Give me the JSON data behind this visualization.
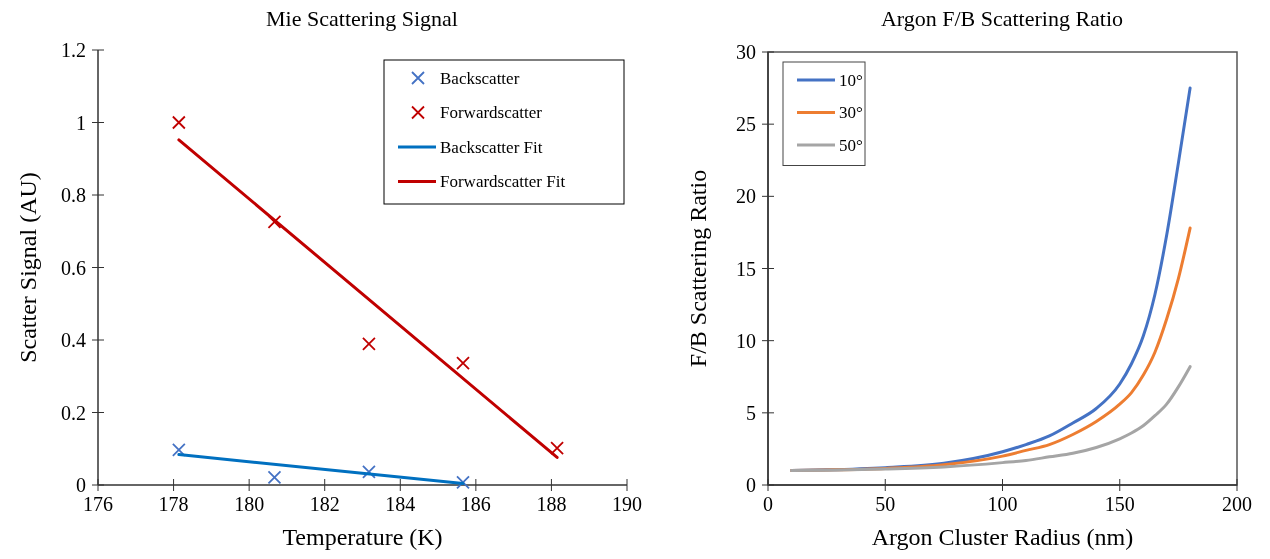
{
  "chart_data": [
    {
      "type": "scatter",
      "title": "Mie Scattering Signal",
      "xlabel": "Temperature (K)",
      "ylabel": "Scatter Signal (AU)",
      "xlim": [
        176,
        190
      ],
      "xticks": [
        176,
        178,
        180,
        182,
        184,
        186,
        188,
        190
      ],
      "ylim": [
        0,
        1.2
      ],
      "yticks": [
        0,
        0.2,
        0.4,
        0.6,
        0.8,
        1,
        1.2
      ],
      "grid": false,
      "legend": "top right",
      "series": [
        {
          "name": "Backscatter",
          "marker": "cross",
          "color": "#4472c4",
          "x": [
            178.14,
            180.67,
            183.17,
            185.66
          ],
          "values": [
            0.097,
            0.021,
            0.036,
            0.007
          ]
        },
        {
          "name": "Forwardscatter",
          "marker": "cross",
          "color": "#c00000",
          "x": [
            178.14,
            180.67,
            183.17,
            185.66,
            188.15
          ],
          "values": [
            1.0,
            0.726,
            0.389,
            0.336,
            0.102
          ]
        },
        {
          "name": "Backscatter Fit",
          "type": "line",
          "marker": "none",
          "color": "#0070c0",
          "x": [
            178.14,
            185.66
          ],
          "values": [
            0.084,
            0.004
          ]
        },
        {
          "name": "Forwardscatter Fit",
          "type": "line",
          "marker": "none",
          "color": "#c00000",
          "x": [
            178.14,
            188.15
          ],
          "values": [
            0.952,
            0.076
          ]
        }
      ]
    },
    {
      "type": "line",
      "title": "Argon F/B Scattering Ratio",
      "xlabel": "Argon Cluster Radius (nm)",
      "ylabel": "F/B Scattering Ratio",
      "xlim": [
        0,
        200
      ],
      "xticks": [
        0,
        50,
        100,
        150,
        200
      ],
      "ylim": [
        0,
        30
      ],
      "yticks": [
        0,
        5,
        10,
        15,
        20,
        25,
        30
      ],
      "grid": false,
      "legend": "top left",
      "x": [
        10,
        25,
        50,
        75,
        100,
        110,
        120,
        130,
        140,
        150,
        155,
        160,
        165,
        170,
        175,
        180
      ],
      "series": [
        {
          "name": "10°",
          "color": "#4472c4",
          "values": [
            1.0,
            1.05,
            1.2,
            1.5,
            2.3,
            2.8,
            3.4,
            4.3,
            5.3,
            7.0,
            8.4,
            10.3,
            13.2,
            17.3,
            22.3,
            27.5
          ]
        },
        {
          "name": "30°",
          "color": "#ed7d31",
          "values": [
            1.0,
            1.04,
            1.15,
            1.4,
            2.0,
            2.4,
            2.8,
            3.5,
            4.4,
            5.6,
            6.4,
            7.6,
            9.2,
            11.5,
            14.3,
            17.8
          ]
        },
        {
          "name": "50°",
          "color": "#a5a5a5",
          "values": [
            1.0,
            1.02,
            1.1,
            1.25,
            1.55,
            1.7,
            1.95,
            2.2,
            2.6,
            3.2,
            3.6,
            4.1,
            4.8,
            5.6,
            6.8,
            8.2
          ]
        }
      ]
    }
  ]
}
